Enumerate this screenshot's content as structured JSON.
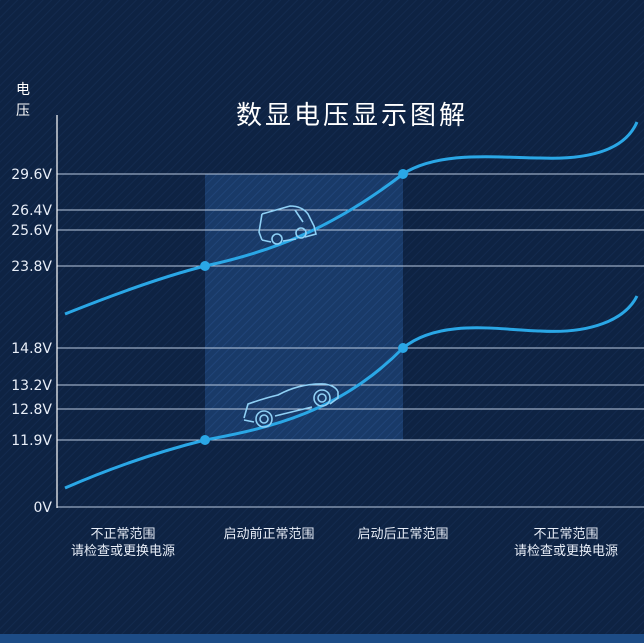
{
  "title": "数显电压显示图解",
  "y_axis": {
    "label_lines": [
      "电",
      "压"
    ],
    "ticks": [
      "29.6V",
      "26.4V",
      "25.6V",
      "23.8V",
      "14.8V",
      "13.2V",
      "12.8V",
      "11.9V",
      "0V"
    ]
  },
  "regions": [
    {
      "lines": [
        "不正常范围",
        "请检查或更换电源"
      ]
    },
    {
      "lines": [
        "启动前正常范围"
      ]
    },
    {
      "lines": [
        "启动后正常范围"
      ]
    },
    {
      "lines": [
        "不正常范围",
        "请检查或更换电源"
      ]
    }
  ]
}
